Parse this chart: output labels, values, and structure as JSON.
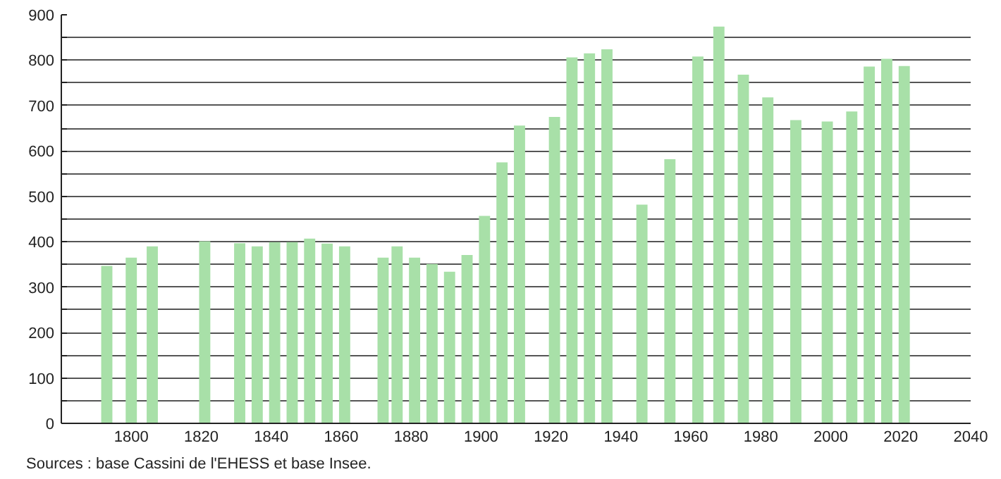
{
  "chart_data": {
    "type": "bar",
    "x": [
      1793,
      1800,
      1806,
      1821,
      1831,
      1836,
      1841,
      1846,
      1851,
      1856,
      1861,
      1872,
      1876,
      1881,
      1886,
      1891,
      1896,
      1901,
      1906,
      1911,
      1921,
      1926,
      1931,
      1936,
      1946,
      1954,
      1962,
      1968,
      1975,
      1982,
      1990,
      1999,
      2006,
      2011,
      2016,
      2021
    ],
    "values": [
      347,
      365,
      390,
      401,
      397,
      390,
      399,
      399,
      407,
      396,
      390,
      365,
      390,
      365,
      351,
      334,
      371,
      457,
      575,
      656,
      675,
      806,
      815,
      824,
      482,
      582,
      808,
      874,
      768,
      718,
      668,
      665,
      687,
      786,
      803,
      787
    ],
    "color": "#a8e0a8",
    "xlim": [
      1780,
      2040
    ],
    "xticks": [
      1800,
      1820,
      1840,
      1860,
      1880,
      1900,
      1920,
      1940,
      1960,
      1980,
      2000,
      2020,
      2040
    ],
    "ylim": [
      0,
      900
    ],
    "yticks": [
      0,
      {
        "value": 50,
        "label": null
      },
      100,
      {
        "value": 150,
        "label": null
      },
      200,
      {
        "value": 250,
        "label": null
      },
      300,
      {
        "value": 350,
        "label": null
      },
      400,
      {
        "value": 450,
        "label": null
      },
      500,
      {
        "value": 550,
        "label": null
      },
      600,
      {
        "value": 650,
        "label": null
      },
      700,
      {
        "value": 750,
        "label": null
      },
      800,
      {
        "value": 850,
        "label": null
      },
      900
    ],
    "grid": "y",
    "annotations": [
      "Sources : base Cassini de l'EHESS et base Insee."
    ]
  }
}
